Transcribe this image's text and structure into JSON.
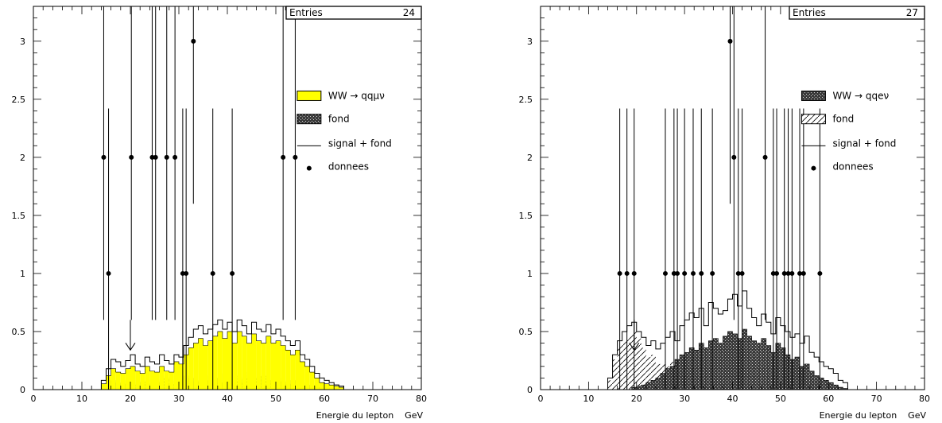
{
  "chart_data": [
    {
      "type": "histogram",
      "stats_box": {
        "label": "Entries",
        "value": "24"
      },
      "xlabel": "Energie du lepton    GeV",
      "xlim": [
        0,
        80
      ],
      "ylim": [
        0,
        3.3
      ],
      "xticks": [
        "0",
        "10",
        "20",
        "30",
        "40",
        "50",
        "60",
        "70",
        "80"
      ],
      "yticks": [
        "0",
        "0.5",
        "1",
        "1.5",
        "2",
        "2.5",
        "3"
      ],
      "legend": {
        "position": "right",
        "entries": [
          {
            "key": "signal",
            "label": "WW → qqμν",
            "style": "fill",
            "color": "#ffff00"
          },
          {
            "key": "background",
            "label": "fond",
            "style": "crosshatch"
          },
          {
            "key": "total",
            "label": "signal + fond",
            "style": "line"
          },
          {
            "key": "data",
            "label": "donnees",
            "style": "marker"
          }
        ]
      },
      "cut_arrow_x": 20,
      "bin_start": 14,
      "bin_width": 1,
      "signal_plus_background": [
        0.08,
        0.18,
        0.26,
        0.24,
        0.2,
        0.25,
        0.3,
        0.22,
        0.2,
        0.28,
        0.24,
        0.22,
        0.3,
        0.25,
        0.22,
        0.3,
        0.28,
        0.38,
        0.45,
        0.52,
        0.55,
        0.48,
        0.52,
        0.56,
        0.6,
        0.52,
        0.58,
        0.5,
        0.6,
        0.55,
        0.48,
        0.58,
        0.52,
        0.5,
        0.56,
        0.48,
        0.52,
        0.46,
        0.42,
        0.38,
        0.42,
        0.3,
        0.26,
        0.2,
        0.14,
        0.1,
        0.08,
        0.06,
        0.04,
        0.03
      ],
      "signal_stack": [
        0.05,
        0.12,
        0.18,
        0.15,
        0.14,
        0.18,
        0.2,
        0.16,
        0.14,
        0.2,
        0.16,
        0.15,
        0.2,
        0.16,
        0.15,
        0.24,
        0.22,
        0.3,
        0.36,
        0.4,
        0.44,
        0.38,
        0.42,
        0.46,
        0.5,
        0.44,
        0.5,
        0.4,
        0.5,
        0.46,
        0.4,
        0.48,
        0.42,
        0.4,
        0.46,
        0.4,
        0.42,
        0.38,
        0.34,
        0.3,
        0.34,
        0.24,
        0.2,
        0.15,
        0.1,
        0.06,
        0.05,
        0.04,
        0.03,
        0.02
      ],
      "background": [
        0.02,
        0.05,
        0.08,
        0.06,
        0.05,
        0.08,
        0.06,
        0.04,
        0.07,
        0.05,
        0.08,
        0.06,
        0.07,
        0.1,
        0.05,
        0.08,
        0.06,
        0.12,
        0.1,
        0.07,
        0.08,
        0.12,
        0.08,
        0.1,
        0.06,
        0.14,
        0.08,
        0.12,
        0.07,
        0.1,
        0.15,
        0.08,
        0.1,
        0.12,
        0.08,
        0.06,
        0.1,
        0.07,
        0.05,
        0.08,
        0.04,
        0.06,
        0.03,
        0.04,
        0.02,
        0.03,
        0.02,
        0.01,
        0.02,
        0.01
      ],
      "data_points": [
        {
          "x": 14.5,
          "y": 2
        },
        {
          "x": 15.5,
          "y": 1
        },
        {
          "x": 20.2,
          "y": 2
        },
        {
          "x": 24.5,
          "y": 2
        },
        {
          "x": 25.2,
          "y": 2
        },
        {
          "x": 27.5,
          "y": 2
        },
        {
          "x": 29.2,
          "y": 2
        },
        {
          "x": 30.8,
          "y": 1
        },
        {
          "x": 31.5,
          "y": 1
        },
        {
          "x": 33.0,
          "y": 3
        },
        {
          "x": 37.0,
          "y": 1
        },
        {
          "x": 41.0,
          "y": 1
        },
        {
          "x": 51.5,
          "y": 2
        },
        {
          "x": 54.0,
          "y": 2
        }
      ]
    },
    {
      "type": "histogram",
      "stats_box": {
        "label": "Entries",
        "value": "27"
      },
      "xlabel": "Energie du lepton    GeV",
      "xlim": [
        0,
        80
      ],
      "ylim": [
        0,
        3.3
      ],
      "xticks": [
        "0",
        "10",
        "20",
        "30",
        "40",
        "50",
        "60",
        "70",
        "80"
      ],
      "yticks": [
        "0",
        "0.5",
        "1",
        "1.5",
        "2",
        "2.5",
        "3"
      ],
      "legend": {
        "position": "right",
        "entries": [
          {
            "key": "signal",
            "label": "WW → qqeν",
            "style": "crosshatch-dark"
          },
          {
            "key": "background",
            "label": "fond",
            "style": "diagonal"
          },
          {
            "key": "total",
            "label": "signal + fond",
            "style": "line"
          },
          {
            "key": "data",
            "label": "donnees",
            "style": "marker"
          }
        ]
      },
      "cut_arrow_x": 19.5,
      "bin_start": 14,
      "bin_width": 1,
      "signal_plus_background": [
        0.1,
        0.3,
        0.42,
        0.5,
        0.55,
        0.58,
        0.5,
        0.45,
        0.38,
        0.42,
        0.35,
        0.4,
        0.45,
        0.5,
        0.42,
        0.55,
        0.6,
        0.66,
        0.62,
        0.7,
        0.55,
        0.75,
        0.7,
        0.65,
        0.68,
        0.78,
        0.82,
        0.72,
        0.85,
        0.7,
        0.62,
        0.55,
        0.65,
        0.58,
        0.48,
        0.62,
        0.55,
        0.5,
        0.45,
        0.48,
        0.4,
        0.46,
        0.32,
        0.28,
        0.24,
        0.2,
        0.18,
        0.14,
        0.08,
        0.06
      ],
      "signal_stack": [
        0.0,
        0.0,
        0.0,
        0.0,
        0.0,
        0.02,
        0.03,
        0.04,
        0.06,
        0.08,
        0.1,
        0.14,
        0.18,
        0.2,
        0.26,
        0.3,
        0.32,
        0.36,
        0.34,
        0.4,
        0.36,
        0.42,
        0.44,
        0.4,
        0.46,
        0.5,
        0.48,
        0.44,
        0.52,
        0.46,
        0.42,
        0.4,
        0.44,
        0.38,
        0.32,
        0.4,
        0.36,
        0.3,
        0.26,
        0.28,
        0.2,
        0.22,
        0.16,
        0.12,
        0.1,
        0.08,
        0.06,
        0.04,
        0.02,
        0.01
      ],
      "background": [
        0.08,
        0.26,
        0.38,
        0.42,
        0.46,
        0.5,
        0.44,
        0.36,
        0.28,
        0.3,
        0.22,
        0.22,
        0.2,
        0.24,
        0.12,
        0.18,
        0.16,
        0.14,
        0.12,
        0.1,
        0.08,
        0.1,
        0.06,
        0.05,
        0.04,
        0.06,
        0.05,
        0.04,
        0.05,
        0.04,
        0.03,
        0.04,
        0.03,
        0.02,
        0.03,
        0.02,
        0.02,
        0.02,
        0.01,
        0.01,
        0.01,
        0.01,
        0.01,
        0.01,
        0.0,
        0.0,
        0.0,
        0.0,
        0.0,
        0.0
      ],
      "data_points": [
        {
          "x": 16.5,
          "y": 1
        },
        {
          "x": 18.0,
          "y": 1
        },
        {
          "x": 19.5,
          "y": 1
        },
        {
          "x": 26.0,
          "y": 1
        },
        {
          "x": 27.8,
          "y": 1
        },
        {
          "x": 28.5,
          "y": 1
        },
        {
          "x": 30.0,
          "y": 1
        },
        {
          "x": 31.8,
          "y": 1
        },
        {
          "x": 33.5,
          "y": 1
        },
        {
          "x": 35.8,
          "y": 1
        },
        {
          "x": 39.5,
          "y": 3
        },
        {
          "x": 40.3,
          "y": 2
        },
        {
          "x": 41.2,
          "y": 1
        },
        {
          "x": 42.0,
          "y": 1
        },
        {
          "x": 46.8,
          "y": 2
        },
        {
          "x": 48.5,
          "y": 1
        },
        {
          "x": 49.2,
          "y": 1
        },
        {
          "x": 50.8,
          "y": 1
        },
        {
          "x": 51.6,
          "y": 1
        },
        {
          "x": 52.4,
          "y": 1
        },
        {
          "x": 54.0,
          "y": 1
        },
        {
          "x": 54.8,
          "y": 1
        },
        {
          "x": 58.2,
          "y": 1
        }
      ]
    }
  ]
}
